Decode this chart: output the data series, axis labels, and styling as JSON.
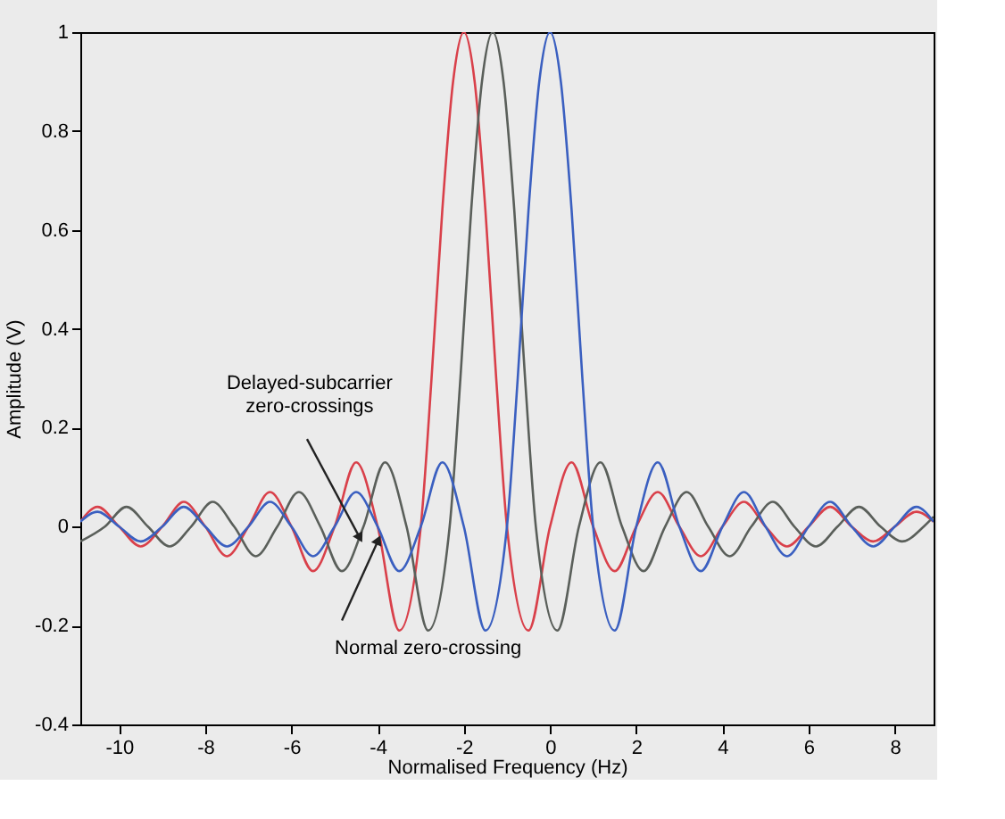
{
  "chart_data": {
    "type": "line",
    "xlabel": "Normalised Frequency (Hz)",
    "ylabel": "Amplitude (V)",
    "xlim": [
      -10.9,
      8.9
    ],
    "ylim": [
      -0.4,
      1
    ],
    "xticks": [
      -10,
      -8,
      -6,
      -4,
      -2,
      0,
      2,
      4,
      6,
      8
    ],
    "yticks": [
      -0.4,
      -0.2,
      0,
      0.2,
      0.4,
      0.6,
      0.8,
      1
    ],
    "grid": false,
    "line_style": "solid",
    "marker": "none",
    "series": [
      {
        "color": "#d9404a",
        "x": [
          -10.9,
          -10.5,
          -10,
          -9.5,
          -9,
          -8.5,
          -8,
          -7.5,
          -7,
          -6.5,
          -6,
          -5.5,
          -5,
          -4.5,
          -4,
          -3.5,
          -3,
          -2.75,
          -2.5,
          -2.25,
          -2,
          -1.75,
          -1.5,
          -1.25,
          -1,
          -0.5,
          0,
          0.5,
          1,
          1.5,
          2,
          2.5,
          3,
          3.5,
          4,
          4.5,
          5,
          5.5,
          6,
          6.5,
          7,
          7.5,
          8,
          8.5,
          8.9
        ],
        "values": [
          0.01,
          0.04,
          0,
          -0.04,
          0,
          0.05,
          0,
          -0.06,
          0,
          0.07,
          0,
          -0.09,
          0,
          0.13,
          0,
          -0.21,
          0,
          0.3,
          0.64,
          0.9,
          1,
          0.9,
          0.64,
          0.3,
          0,
          -0.21,
          0,
          0.13,
          0,
          -0.09,
          0,
          0.07,
          0,
          -0.06,
          0,
          0.05,
          0,
          -0.04,
          0,
          0.04,
          0,
          -0.03,
          0,
          0.03,
          0.01
        ]
      },
      {
        "color": "#5a5f5a",
        "x": [
          -10.9,
          -10.33,
          -9.83,
          -9.33,
          -8.83,
          -8.33,
          -7.83,
          -7.33,
          -6.83,
          -6.33,
          -5.83,
          -5.33,
          -4.83,
          -4.33,
          -3.83,
          -3.33,
          -2.83,
          -2.33,
          -2.08,
          -1.83,
          -1.58,
          -1.33,
          -1.08,
          -0.83,
          -0.58,
          -0.33,
          0.17,
          0.67,
          1.17,
          1.67,
          2.17,
          2.67,
          3.17,
          3.67,
          4.17,
          4.67,
          5.17,
          5.67,
          6.17,
          6.67,
          7.17,
          7.67,
          8.17,
          8.67,
          8.9
        ],
        "values": [
          -0.03,
          0,
          0.04,
          0,
          -0.04,
          0,
          0.05,
          0,
          -0.06,
          0,
          0.07,
          0,
          -0.09,
          0,
          0.13,
          0,
          -0.21,
          0,
          0.3,
          0.64,
          0.9,
          1,
          0.9,
          0.64,
          0.3,
          0,
          -0.21,
          0,
          0.13,
          0,
          -0.09,
          0,
          0.07,
          0,
          -0.06,
          0,
          0.05,
          0,
          -0.04,
          0,
          0.04,
          0,
          -0.03,
          0,
          0.02
        ]
      },
      {
        "color": "#3a5fc0",
        "x": [
          -10.9,
          -10.5,
          -10,
          -9.5,
          -9,
          -8.5,
          -8,
          -7.5,
          -7,
          -6.5,
          -6,
          -5.5,
          -5,
          -4.5,
          -4,
          -3.5,
          -3,
          -2.5,
          -2,
          -1.5,
          -1,
          -0.75,
          -0.5,
          -0.25,
          0,
          0.25,
          0.5,
          0.75,
          1,
          1.5,
          2,
          2.5,
          3,
          3.5,
          4,
          4.5,
          5,
          5.5,
          6,
          6.5,
          7,
          7.5,
          8,
          8.5,
          8.9
        ],
        "values": [
          0.01,
          0.03,
          0,
          -0.03,
          0,
          0.04,
          0,
          -0.04,
          0,
          0.05,
          0,
          -0.06,
          0,
          0.07,
          0,
          -0.09,
          0,
          0.13,
          0,
          -0.21,
          0,
          0.3,
          0.64,
          0.9,
          1,
          0.9,
          0.64,
          0.3,
          0,
          -0.21,
          0,
          0.13,
          0,
          -0.09,
          0,
          0.07,
          0,
          -0.06,
          0,
          0.05,
          0,
          -0.04,
          0,
          0.04,
          0.01
        ]
      }
    ],
    "annotations": [
      {
        "text": "Delayed-subcarrier\nzero-crossings",
        "x": -4.43,
        "y": -0.02
      },
      {
        "text": "Normal zero-crossing",
        "x": -4.0,
        "y": -0.03
      }
    ]
  }
}
